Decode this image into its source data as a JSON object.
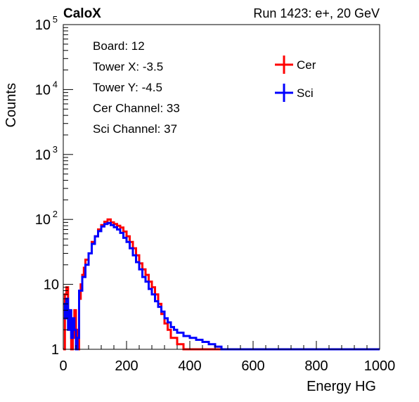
{
  "chart_data": {
    "type": "line",
    "title": "",
    "corner_label": "CaloX",
    "run_label": "Run 1423: e+, 20 GeV",
    "xlabel": "Energy HG",
    "ylabel": "Counts",
    "xlim": [
      0,
      1000
    ],
    "ylim": [
      1,
      100000
    ],
    "y_scale": "log",
    "grid": false,
    "legend_placement": "top-right",
    "x_ticks": [
      "0",
      "200",
      "400",
      "600",
      "800",
      "1000"
    ],
    "y_ticks": [
      {
        "value": 1,
        "base": "1",
        "exp": ""
      },
      {
        "value": 10,
        "base": "10",
        "exp": ""
      },
      {
        "value": 100,
        "base": "10",
        "exp": "2"
      },
      {
        "value": 1000,
        "base": "10",
        "exp": "3"
      },
      {
        "value": 10000,
        "base": "10",
        "exp": "4"
      },
      {
        "value": 100000,
        "base": "10",
        "exp": "5"
      }
    ],
    "info_lines": [
      "Board: 12",
      "Tower X: -3.5",
      "Tower Y: -4.5",
      "Cer Channel: 33",
      "Sci Channel: 37"
    ],
    "series": [
      {
        "name": "Cer",
        "color": "#ff0000",
        "points": [
          [
            0,
            1
          ],
          [
            5,
            7
          ],
          [
            10,
            9
          ],
          [
            15,
            4
          ],
          [
            20,
            3
          ],
          [
            25,
            1
          ],
          [
            30,
            1.5
          ],
          [
            35,
            4
          ],
          [
            40,
            2
          ],
          [
            45,
            1
          ],
          [
            50,
            6
          ],
          [
            55,
            10
          ],
          [
            60,
            14
          ],
          [
            65,
            18
          ],
          [
            70,
            24
          ],
          [
            80,
            30
          ],
          [
            90,
            45
          ],
          [
            100,
            55
          ],
          [
            110,
            70
          ],
          [
            120,
            82
          ],
          [
            130,
            92
          ],
          [
            140,
            100
          ],
          [
            150,
            90
          ],
          [
            160,
            85
          ],
          [
            170,
            80
          ],
          [
            180,
            75
          ],
          [
            190,
            65
          ],
          [
            200,
            55
          ],
          [
            210,
            45
          ],
          [
            220,
            36
          ],
          [
            230,
            28
          ],
          [
            240,
            21
          ],
          [
            250,
            17
          ],
          [
            260,
            14
          ],
          [
            270,
            11
          ],
          [
            280,
            9
          ],
          [
            290,
            7
          ],
          [
            300,
            5
          ],
          [
            310,
            3.5
          ],
          [
            320,
            2.5
          ],
          [
            330,
            2
          ],
          [
            340,
            1.5
          ],
          [
            350,
            1.5
          ],
          [
            360,
            1.2
          ],
          [
            380,
            1
          ],
          [
            400,
            1
          ],
          [
            1000,
            1
          ]
        ]
      },
      {
        "name": "Sci",
        "color": "#0000ff",
        "points": [
          [
            0,
            5
          ],
          [
            5,
            3
          ],
          [
            10,
            6
          ],
          [
            15,
            2
          ],
          [
            20,
            4
          ],
          [
            25,
            1.5
          ],
          [
            30,
            3
          ],
          [
            35,
            2
          ],
          [
            40,
            1
          ],
          [
            45,
            1.5
          ],
          [
            50,
            8
          ],
          [
            60,
            13
          ],
          [
            70,
            20
          ],
          [
            80,
            30
          ],
          [
            90,
            42
          ],
          [
            100,
            55
          ],
          [
            110,
            66
          ],
          [
            120,
            78
          ],
          [
            130,
            85
          ],
          [
            140,
            88
          ],
          [
            150,
            82
          ],
          [
            160,
            76
          ],
          [
            170,
            70
          ],
          [
            180,
            62
          ],
          [
            190,
            52
          ],
          [
            200,
            45
          ],
          [
            210,
            36
          ],
          [
            220,
            28
          ],
          [
            230,
            22
          ],
          [
            240,
            17
          ],
          [
            250,
            13
          ],
          [
            260,
            11
          ],
          [
            270,
            8.5
          ],
          [
            280,
            7
          ],
          [
            290,
            5.5
          ],
          [
            300,
            4.5
          ],
          [
            310,
            3.8
          ],
          [
            320,
            3
          ],
          [
            330,
            2.6
          ],
          [
            340,
            2.2
          ],
          [
            350,
            2
          ],
          [
            360,
            1.8
          ],
          [
            380,
            1.6
          ],
          [
            400,
            1.5
          ],
          [
            420,
            1.4
          ],
          [
            440,
            1.3
          ],
          [
            460,
            1.2
          ],
          [
            480,
            1.1
          ],
          [
            500,
            1
          ],
          [
            550,
            1
          ],
          [
            600,
            1
          ],
          [
            1000,
            1
          ]
        ]
      }
    ]
  }
}
